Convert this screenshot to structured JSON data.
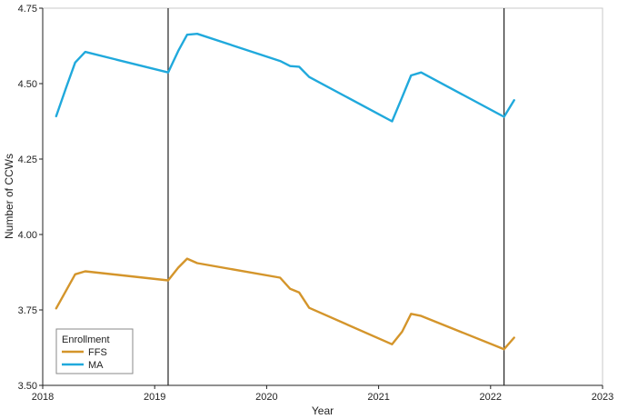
{
  "chart_data": {
    "type": "line",
    "xlabel": "Year",
    "ylabel": "Number of CCWs",
    "xlim": [
      2018,
      2023
    ],
    "ylim": [
      3.5,
      4.75
    ],
    "x_ticks": [
      "2018",
      "2019",
      "2020",
      "2021",
      "2022",
      "2023"
    ],
    "y_ticks": [
      "3.50",
      "3.75",
      "4.00",
      "4.25",
      "4.50",
      "4.75"
    ],
    "grid": false,
    "legend": {
      "title": "Enrollment",
      "placement": "bottom-left"
    },
    "vertical_lines": [
      2019.12,
      2022.12
    ],
    "series": [
      {
        "name": "FFS",
        "color": "#D4952B",
        "points": [
          [
            2018.12,
            3.755
          ],
          [
            2018.21,
            3.815
          ],
          [
            2018.29,
            3.868
          ],
          [
            2018.38,
            3.878
          ],
          [
            2019.12,
            3.848
          ],
          [
            2019.21,
            3.89
          ],
          [
            2019.29,
            3.92
          ],
          [
            2019.38,
            3.905
          ],
          [
            2020.12,
            3.857
          ],
          [
            2020.21,
            3.82
          ],
          [
            2020.29,
            3.808
          ],
          [
            2020.38,
            3.757
          ],
          [
            2021.12,
            3.636
          ],
          [
            2021.21,
            3.678
          ],
          [
            2021.29,
            3.737
          ],
          [
            2021.38,
            3.73
          ],
          [
            2022.12,
            3.62
          ],
          [
            2022.21,
            3.658
          ]
        ]
      },
      {
        "name": "MA",
        "color": "#20A9DC",
        "points": [
          [
            2018.12,
            4.392
          ],
          [
            2018.21,
            4.488
          ],
          [
            2018.29,
            4.57
          ],
          [
            2018.38,
            4.605
          ],
          [
            2019.12,
            4.537
          ],
          [
            2019.21,
            4.608
          ],
          [
            2019.29,
            4.662
          ],
          [
            2019.38,
            4.665
          ],
          [
            2020.12,
            4.575
          ],
          [
            2020.21,
            4.558
          ],
          [
            2020.29,
            4.556
          ],
          [
            2020.38,
            4.522
          ],
          [
            2021.12,
            4.375
          ],
          [
            2021.21,
            4.455
          ],
          [
            2021.29,
            4.527
          ],
          [
            2021.38,
            4.537
          ],
          [
            2022.12,
            4.39
          ],
          [
            2022.21,
            4.445
          ]
        ]
      }
    ]
  }
}
